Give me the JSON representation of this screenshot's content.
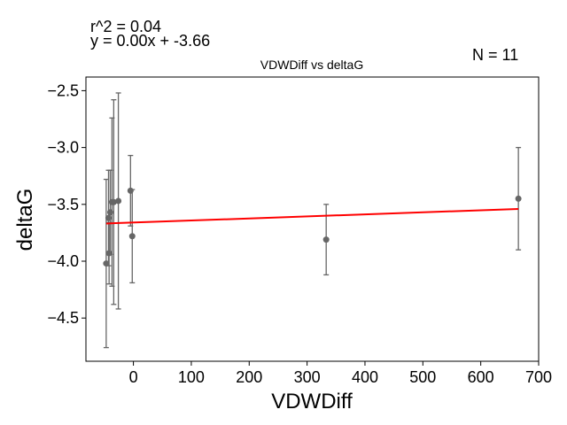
{
  "chart_data": {
    "type": "scatter",
    "title": "VDWDiff vs deltaG",
    "xlabel": "VDWDiff",
    "ylabel": "deltaG",
    "xlim": [
      -82,
      700
    ],
    "ylim": [
      -4.88,
      -2.38
    ],
    "xticks": [
      0,
      100,
      200,
      300,
      400,
      500,
      600,
      700
    ],
    "yticks": [
      -2.5,
      -3.0,
      -3.5,
      -4.0,
      -4.5
    ],
    "xtick_labels": [
      "0",
      "100",
      "200",
      "300",
      "400",
      "500",
      "600",
      "700"
    ],
    "ytick_labels": [
      "−2.5",
      "−3.0",
      "−3.5",
      "−4.0",
      "−4.5"
    ],
    "grid": false,
    "annotations": {
      "r2": "r^2 = 0.04",
      "equation": "y = 0.00x + -3.66",
      "n": "N = 11"
    },
    "points": [
      {
        "x": -47,
        "y": -4.02,
        "yerr": 0.74
      },
      {
        "x": -43,
        "y": -3.62,
        "yerr": 0.42
      },
      {
        "x": -42,
        "y": -3.93,
        "yerr": 0.27
      },
      {
        "x": -40,
        "y": -3.57,
        "yerr": 0.37
      },
      {
        "x": -37,
        "y": -3.48,
        "yerr": 0.74
      },
      {
        "x": -34,
        "y": -3.48,
        "yerr": 0.9
      },
      {
        "x": -26,
        "y": -3.47,
        "yerr": 0.95
      },
      {
        "x": -5,
        "y": -3.38,
        "yerr": 0.31
      },
      {
        "x": -2,
        "y": -3.78,
        "yerr": 0.41
      },
      {
        "x": 333,
        "y": -3.81,
        "yerr": 0.31
      },
      {
        "x": 665,
        "y": -3.45,
        "yerr": 0.45
      }
    ],
    "regression": {
      "slope": 0.00018,
      "intercept": -3.66,
      "x_range": [
        -47,
        665
      ]
    },
    "colors": {
      "points": "#666666",
      "errorbars": "#666666",
      "fit_line": "#ff0000"
    }
  }
}
